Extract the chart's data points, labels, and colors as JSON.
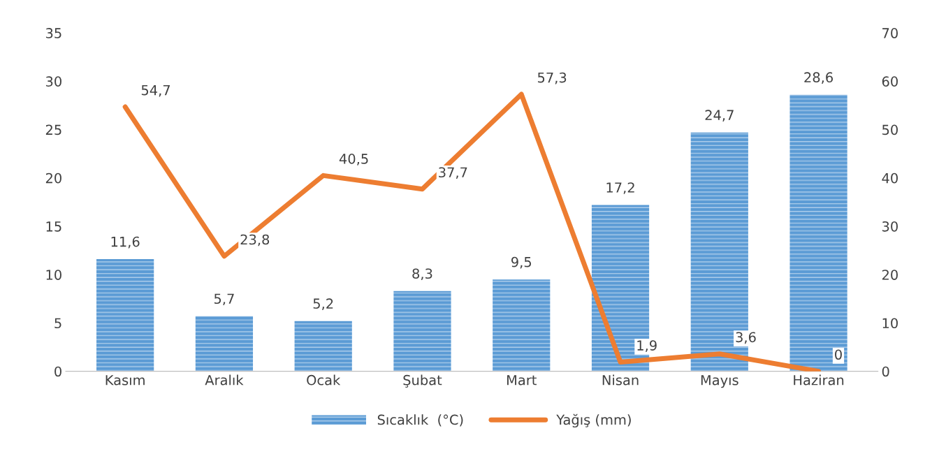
{
  "chart_data": {
    "type": "bar",
    "categories": [
      "Kasım",
      "Aralık",
      "Ocak",
      "Şubat",
      "Mart",
      "Nisan",
      "Mayıs",
      "Haziran"
    ],
    "series": [
      {
        "name": "Sıcaklık  (°C)",
        "color": "#5b9bd5",
        "values": [
          11.6,
          5.7,
          5.2,
          8.3,
          9.5,
          17.2,
          24.7,
          28.6
        ],
        "value_labels": [
          "11,6",
          "5,7",
          "5,2",
          "8,3",
          "9,5",
          "17,2",
          "24,7",
          "28,6"
        ]
      },
      {
        "name": "Yağış (mm)",
        "type": "line",
        "axis": "y2",
        "color": "#ed7d31",
        "values": [
          54.7,
          23.8,
          40.5,
          37.7,
          57.3,
          1.9,
          3.6,
          0
        ],
        "value_labels": [
          "54,7",
          "23,8",
          "40,5",
          "37,7",
          "57,3",
          "1,9",
          "3,6",
          "0"
        ]
      }
    ],
    "ylim": [
      0,
      35
    ],
    "yticks": [
      0,
      5,
      10,
      15,
      20,
      25,
      30,
      35
    ],
    "y2lim": [
      0,
      70
    ],
    "y2ticks": [
      0,
      10,
      20,
      30,
      40,
      50,
      60,
      70
    ],
    "grid": false,
    "legend": "bottom"
  }
}
